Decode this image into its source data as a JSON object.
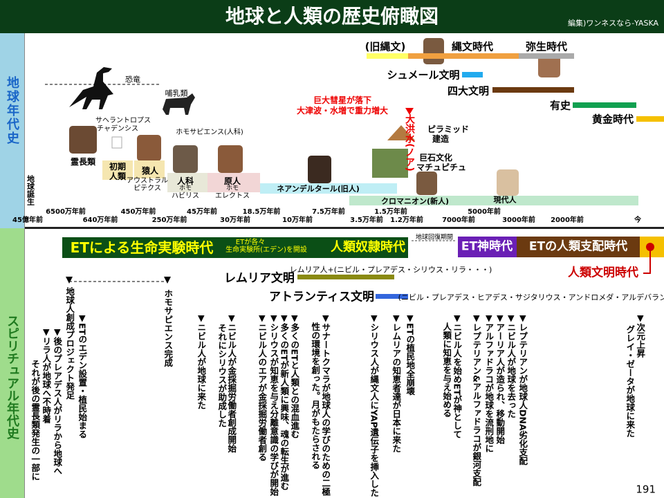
{
  "header": {
    "title": "地球と人類の歴史俯瞰図",
    "editor": "編集)ワンネスなら-YASKA"
  },
  "sidebar": {
    "earth": "地球年代史",
    "spiritual": "スピリチュアル年代史"
  },
  "earth": {
    "labels": [
      "(旧縄文)",
      "縄文時代",
      "弥生時代",
      "シュメール文明",
      "四大文明",
      "有史",
      "黄金時代",
      "恐竜",
      "哺乳類",
      "サヘラントロプス",
      "チャデンシス",
      "ホモサピエンス(人科)",
      "霊長類",
      "初期",
      "人類",
      "猿人",
      "アウストラル",
      "ピテクス",
      "人科",
      "ホモ",
      "ハビリス",
      "原人",
      "ホモ",
      "エレクトス",
      "巨大彗星が落下",
      "大津波・水増で重力増大",
      "ピラミッド",
      "建造",
      "巨石文化",
      "マチュピチュ",
      "ネアンデルタール(旧人)",
      "クロマニオン(新人)",
      "現代人"
    ],
    "vertical": [
      "地球誕生",
      "大洪水(ノア)"
    ],
    "ticks_upper": [
      "6500万年前",
      "450万年前",
      "45万年前",
      "18.5万年前",
      "7.5万年前",
      "1.5万年前",
      "5000年前"
    ],
    "ticks_lower": [
      "45億年前",
      "640万年前",
      "250万年前",
      "30万年前",
      "10万年前",
      "3.5万年前",
      "1.2万年前",
      "7000年前",
      "3000年前",
      "2000年前",
      "今"
    ]
  },
  "spiritual": {
    "labels": [
      "ETによる生命実験時代",
      "ETが各々",
      "生命実験所(エデン)を開設",
      "人類奴隷時代",
      "地球回復期間",
      "ET神時代",
      "ETの人類支配時代",
      "人類文明時代",
      "レムリア文明",
      "レムリア人+(ニビル・プレアデス・シリウス・リラ・・・)",
      "アトランティス文明",
      "(ニビル・プレアデス・ヒアデス・サジタリウス・アンドロメダ・アルデバラン)"
    ],
    "events": [
      [
        "地球人創成プロジェクト発足"
      ],
      [
        "ホモサピエンス完成"
      ],
      [
        "▼ETのエデン設置・植民始まる"
      ],
      [
        "▼後のプレアデス人がリラから地球へ"
      ],
      [
        "▼リラ人が地球へ不時着"
      ],
      [
        "それが後の霊長類発生の一部に"
      ],
      [
        "▼ニビル人が地球に来た"
      ],
      [
        "▼ニビル人が金採掘労働者創成開始"
      ],
      [
        "それにシリウスが助成した"
      ],
      [
        "▼ニビル人のエアが金採掘労働者創る"
      ],
      [
        "▼シリウスが知恵を与え分離意識の学びが開始"
      ],
      [
        "▼多くのETが新人類に興味、魂の転生が進む"
      ],
      [
        "▼多くのETと人類との混血進む"
      ],
      [
        "▼サナートクマラが地球人の学びのための二極",
        "性の環境を創った。月がもたらされる"
      ],
      [
        "▼シリウス人が縄文人にYAP遺伝子を挿入した"
      ],
      [
        "▼レムリアの知恵者達が日本に来た"
      ],
      [
        "▼ETの植民地全崩壊"
      ],
      [
        "▼ニビル人を始めETが神として",
        "人類に知恵を与え始める"
      ],
      [
        "▼レプテリアン&アルファドラコが銀河支配"
      ],
      [
        "▼アルファドラコが地球を流刑地に"
      ],
      [
        "▼アーリア人が造られ、移動開始"
      ],
      [
        "▼ニビル人が地球を去った"
      ],
      [
        "▼レプテリアンが地球人DNA劣化支配"
      ],
      [
        "▼次元上昇"
      ],
      [
        "グレイ・ゼータが地球に来た"
      ]
    ]
  },
  "page_number": "191"
}
